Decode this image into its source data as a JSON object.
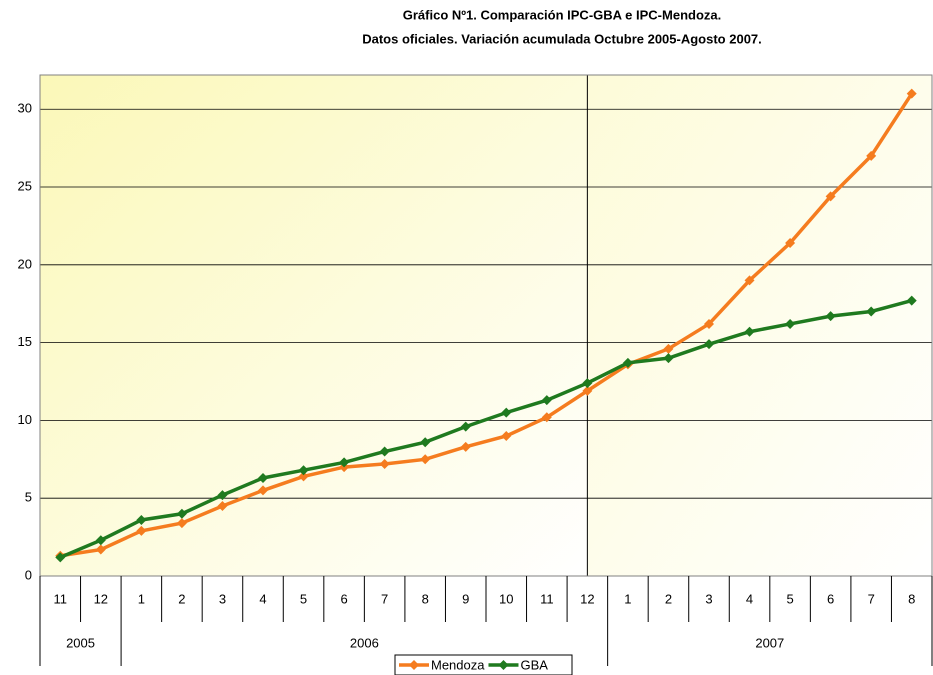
{
  "chart_data": {
    "type": "line",
    "title": [
      "Gráfico Nº1. Comparación IPC-GBA e IPC-Mendoza.",
      "Datos oficiales. Variación acumulada Octubre 2005-Agosto 2007."
    ],
    "category_groups": [
      {
        "label": "2005",
        "categories": [
          "11",
          "12"
        ]
      },
      {
        "label": "2006",
        "categories": [
          "1",
          "2",
          "3",
          "4",
          "5",
          "6",
          "7",
          "8",
          "9",
          "10",
          "11",
          "12"
        ]
      },
      {
        "label": "2007",
        "categories": [
          "1",
          "2",
          "3",
          "4",
          "5",
          "6",
          "7",
          "8"
        ]
      }
    ],
    "series": [
      {
        "name": "Mendoza",
        "color": "#f57c1f",
        "values": [
          1.3,
          1.7,
          2.9,
          3.4,
          4.5,
          5.5,
          6.4,
          7.0,
          7.2,
          7.5,
          8.3,
          9.0,
          10.2,
          11.9,
          13.6,
          14.6,
          16.2,
          19.0,
          21.4,
          24.4,
          27.0,
          31.0
        ]
      },
      {
        "name": "GBA",
        "color": "#1f7a1f",
        "values": [
          1.2,
          2.3,
          3.6,
          4.0,
          5.2,
          6.3,
          6.8,
          7.3,
          8.0,
          8.6,
          9.6,
          10.5,
          11.3,
          12.4,
          13.7,
          14.0,
          14.9,
          15.7,
          16.2,
          16.7,
          17.0,
          17.7
        ]
      }
    ],
    "ylim": [
      0,
      32.2
    ],
    "yticks": [
      0,
      5,
      10,
      15,
      20,
      25,
      30
    ],
    "grid": true,
    "legend": "bottom"
  }
}
